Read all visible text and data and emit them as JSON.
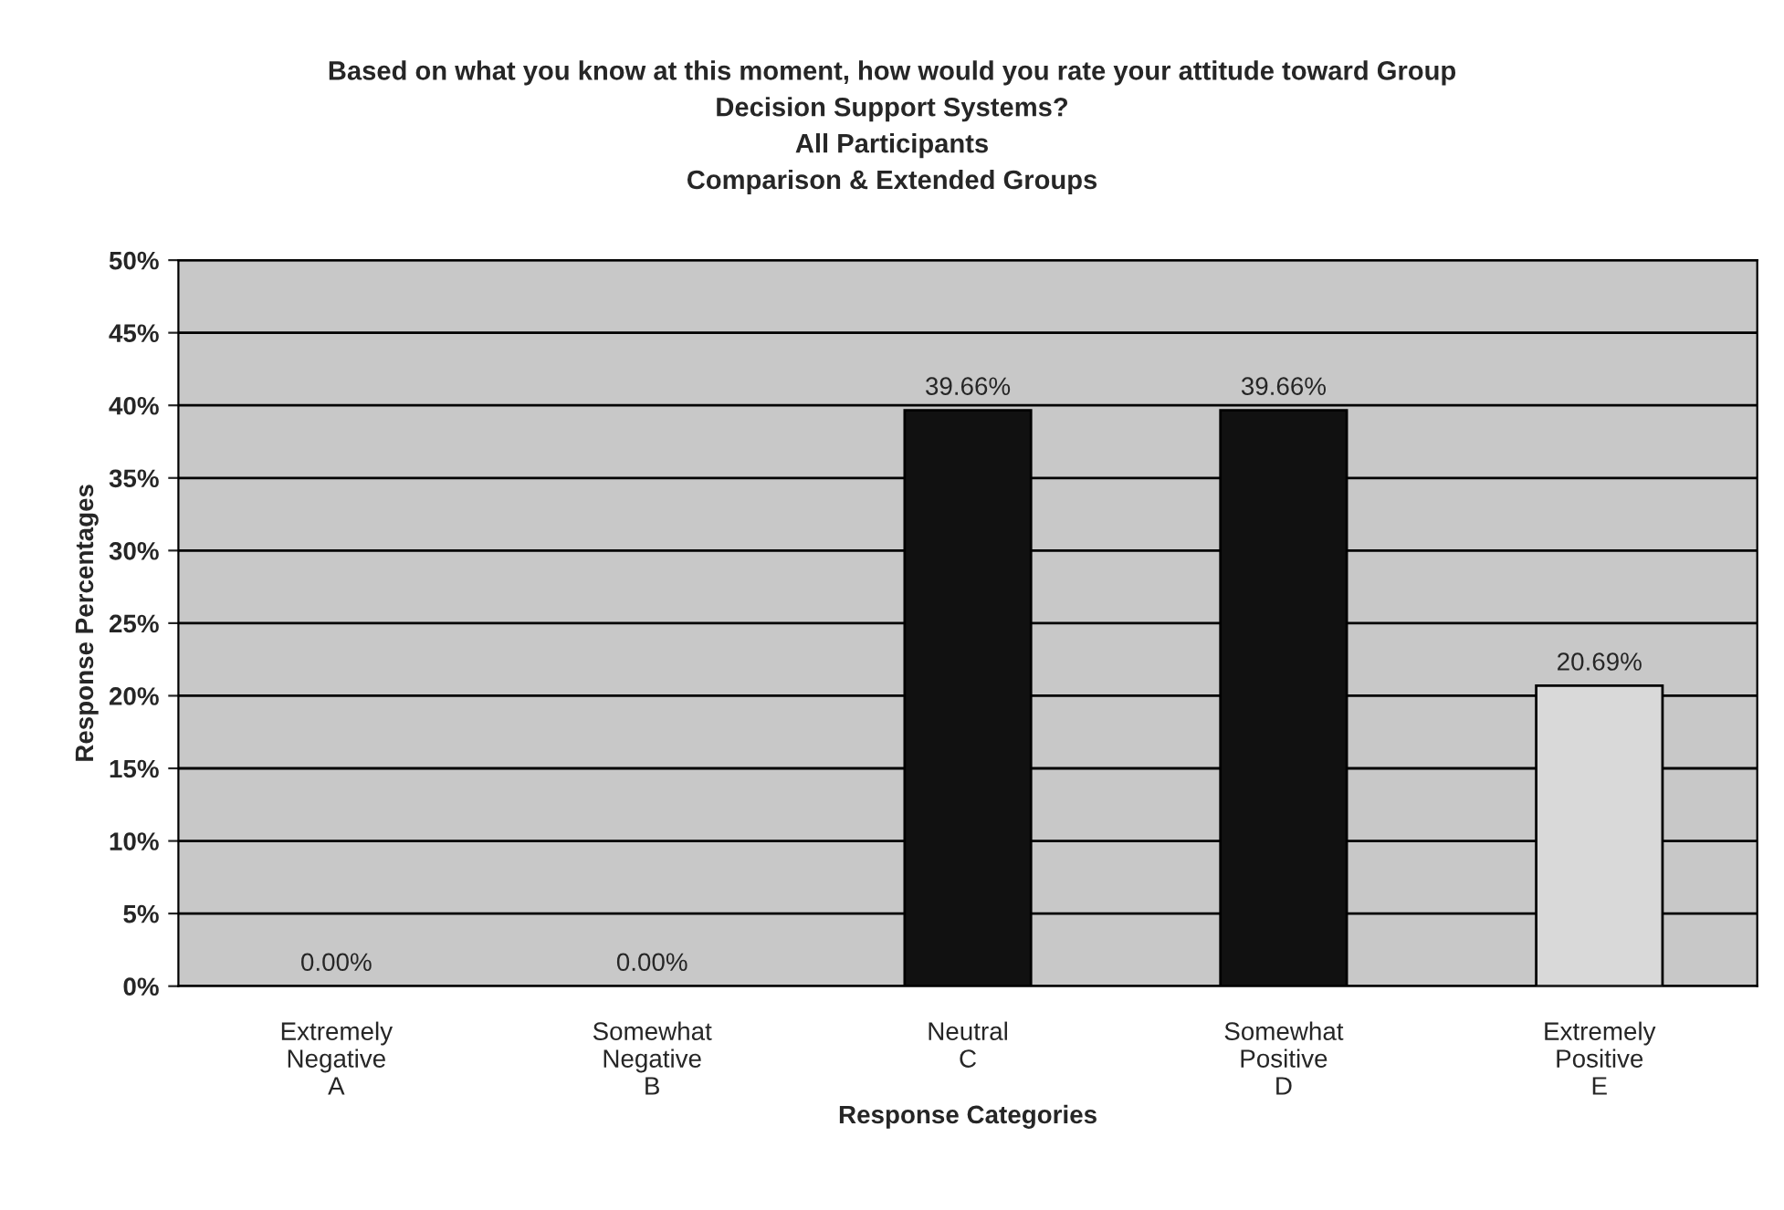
{
  "chart_data": {
    "type": "bar",
    "title": "Based on what you know at this moment, how would you rate your attitude toward Group\nDecision Support Systems?\nAll Participants\nComparison & Extended Groups",
    "xlabel": "Response Categories",
    "ylabel": "Response Percentages",
    "categories": [
      "Extremely\nNegative\nA",
      "Somewhat\nNegative\nB",
      "Neutral\nC",
      "Somewhat\nPositive\nD",
      "Extremely\nPositive\nE"
    ],
    "values": [
      0,
      0,
      39.66,
      39.66,
      20.69
    ],
    "colors": [
      "#111111",
      "#111111",
      "#111111",
      "#111111",
      "#d9d9d9"
    ],
    "value_labels": [
      "0.00%",
      "0.00%",
      "39.66%",
      "39.66%",
      "20.69%"
    ],
    "ylim": [
      0,
      50
    ],
    "yticks": [
      {
        "value": 0,
        "label": "0%"
      },
      {
        "value": 5,
        "label": "5%"
      },
      {
        "value": 10,
        "label": "10%"
      },
      {
        "value": 15,
        "label": "15%"
      },
      {
        "value": 20,
        "label": "20%"
      },
      {
        "value": 25,
        "label": "25%"
      },
      {
        "value": 30,
        "label": "30%"
      },
      {
        "value": 35,
        "label": "35%"
      },
      {
        "value": 40,
        "label": "40%"
      },
      {
        "value": 45,
        "label": "45%"
      },
      {
        "value": 50,
        "label": "50%"
      }
    ],
    "grid": "y"
  }
}
